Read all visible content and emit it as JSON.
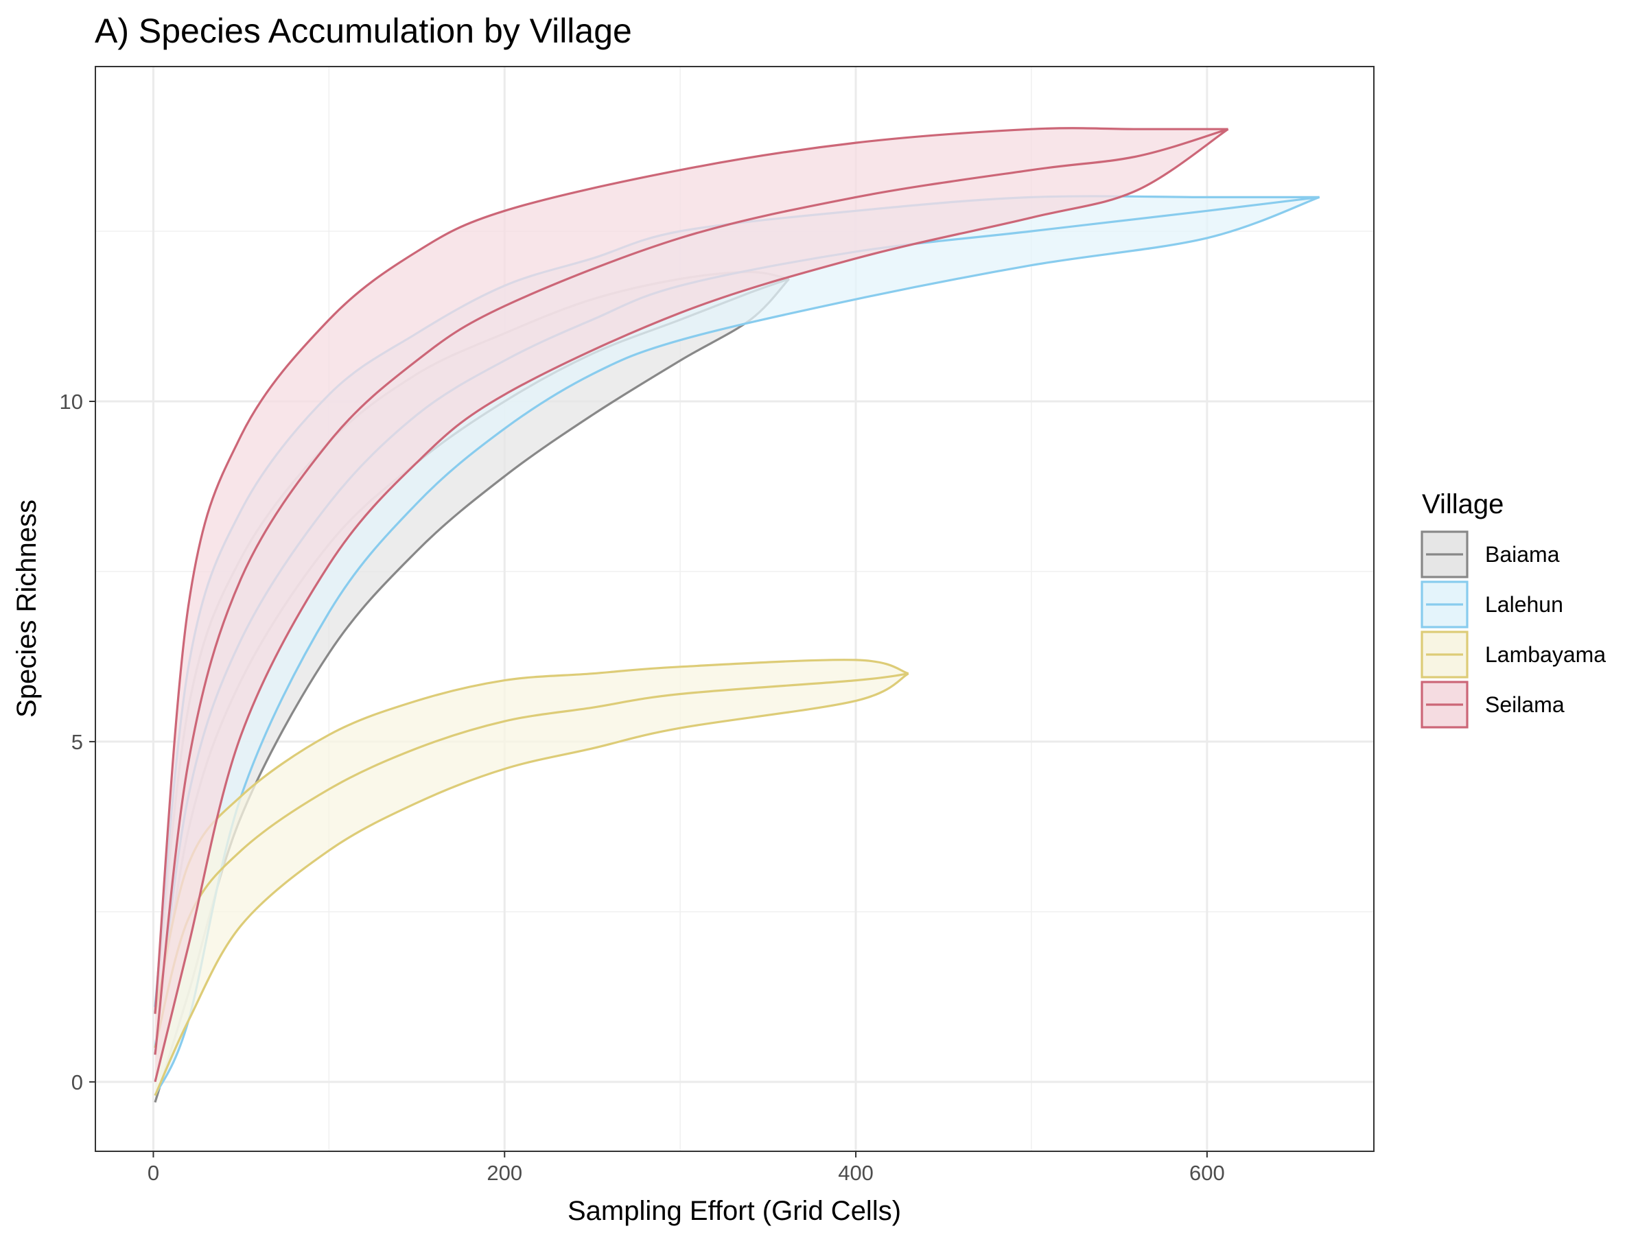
{
  "chart_data": {
    "type": "area",
    "title": "A) Species Accumulation by Village",
    "xlabel": "Sampling Effort (Grid Cells)",
    "ylabel": "Species Richness",
    "xlim": [
      -33,
      695
    ],
    "ylim": [
      -1.02,
      14.92
    ],
    "x_ticks": [
      0,
      200,
      400,
      600
    ],
    "y_ticks": [
      0,
      5,
      10
    ],
    "x_tick_labels": [
      "0",
      "200",
      "400",
      "600"
    ],
    "y_tick_labels": [
      "0",
      "5",
      "10"
    ],
    "grid": true,
    "legend": {
      "title": "Village",
      "position": "right"
    },
    "series": [
      {
        "name": "Baiama",
        "color": "#888888",
        "fill": "#e6e6e6",
        "points": [
          {
            "x": 1,
            "lower": -0.3,
            "mid": 0.4,
            "upper": 1.0
          },
          {
            "x": 20,
            "lower": 1.3,
            "mid": 3.7,
            "upper": 5.5
          },
          {
            "x": 50,
            "lower": 3.9,
            "mid": 5.9,
            "upper": 7.7
          },
          {
            "x": 100,
            "lower": 6.3,
            "mid": 7.9,
            "upper": 9.4
          },
          {
            "x": 150,
            "lower": 7.8,
            "mid": 9.1,
            "upper": 10.4
          },
          {
            "x": 200,
            "lower": 8.9,
            "mid": 10.0,
            "upper": 11.0
          },
          {
            "x": 250,
            "lower": 9.8,
            "mid": 10.7,
            "upper": 11.5
          },
          {
            "x": 300,
            "lower": 10.6,
            "mid": 11.2,
            "upper": 11.8
          },
          {
            "x": 340,
            "lower": 11.2,
            "mid": 11.6,
            "upper": 11.9
          },
          {
            "x": 362,
            "lower": 11.8,
            "mid": 11.8,
            "upper": 11.8
          }
        ]
      },
      {
        "name": "Lalehun",
        "color": "#88ccee",
        "fill": "#e4f4fb",
        "points": [
          {
            "x": 1,
            "lower": -0.2,
            "mid": 0.5,
            "upper": 1.1
          },
          {
            "x": 20,
            "lower": 0.9,
            "mid": 4.2,
            "upper": 6.1
          },
          {
            "x": 50,
            "lower": 4.2,
            "mid": 6.5,
            "upper": 8.4
          },
          {
            "x": 100,
            "lower": 6.9,
            "mid": 8.5,
            "upper": 10.1
          },
          {
            "x": 150,
            "lower": 8.5,
            "mid": 9.8,
            "upper": 11.0
          },
          {
            "x": 200,
            "lower": 9.6,
            "mid": 10.6,
            "upper": 11.7
          },
          {
            "x": 250,
            "lower": 10.4,
            "mid": 11.2,
            "upper": 12.1
          },
          {
            "x": 300,
            "lower": 10.9,
            "mid": 11.7,
            "upper": 12.5
          },
          {
            "x": 400,
            "lower": 11.5,
            "mid": 12.2,
            "upper": 12.8
          },
          {
            "x": 500,
            "lower": 12.0,
            "mid": 12.5,
            "upper": 13.0
          },
          {
            "x": 600,
            "lower": 12.4,
            "mid": 12.8,
            "upper": 13.0
          },
          {
            "x": 664,
            "lower": 13.0,
            "mid": 13.0,
            "upper": 13.0
          }
        ]
      },
      {
        "name": "Lambayama",
        "color": "#ddcc77",
        "fill": "#f8f5e3",
        "points": [
          {
            "x": 1,
            "lower": -0.2,
            "mid": 0.5,
            "upper": 1.0
          },
          {
            "x": 20,
            "lower": 0.9,
            "mid": 2.4,
            "upper": 3.2
          },
          {
            "x": 50,
            "lower": 2.3,
            "mid": 3.4,
            "upper": 4.2
          },
          {
            "x": 100,
            "lower": 3.4,
            "mid": 4.3,
            "upper": 5.1
          },
          {
            "x": 150,
            "lower": 4.1,
            "mid": 4.9,
            "upper": 5.6
          },
          {
            "x": 200,
            "lower": 4.6,
            "mid": 5.3,
            "upper": 5.9
          },
          {
            "x": 250,
            "lower": 4.9,
            "mid": 5.5,
            "upper": 6.0
          },
          {
            "x": 300,
            "lower": 5.2,
            "mid": 5.7,
            "upper": 6.1
          },
          {
            "x": 400,
            "lower": 5.6,
            "mid": 5.9,
            "upper": 6.2
          },
          {
            "x": 430,
            "lower": 6.0,
            "mid": 6.0,
            "upper": 6.0
          }
        ]
      },
      {
        "name": "Seilama",
        "color": "#cc6677",
        "fill": "#f5dce1",
        "points": [
          {
            "x": 1,
            "lower": 0.0,
            "mid": 0.4,
            "upper": 1.0
          },
          {
            "x": 20,
            "lower": 2.0,
            "mid": 4.7,
            "upper": 7.0
          },
          {
            "x": 50,
            "lower": 5.1,
            "mid": 7.4,
            "upper": 9.5
          },
          {
            "x": 100,
            "lower": 7.6,
            "mid": 9.4,
            "upper": 11.2
          },
          {
            "x": 150,
            "lower": 9.1,
            "mid": 10.6,
            "upper": 12.2
          },
          {
            "x": 200,
            "lower": 10.1,
            "mid": 11.4,
            "upper": 12.8
          },
          {
            "x": 300,
            "lower": 11.3,
            "mid": 12.4,
            "upper": 13.4
          },
          {
            "x": 400,
            "lower": 12.1,
            "mid": 13.0,
            "upper": 13.8
          },
          {
            "x": 500,
            "lower": 12.7,
            "mid": 13.4,
            "upper": 14.0
          },
          {
            "x": 560,
            "lower": 13.1,
            "mid": 13.6,
            "upper": 14.0
          },
          {
            "x": 612,
            "lower": 14.0,
            "mid": 14.0,
            "upper": 14.0
          }
        ]
      }
    ]
  }
}
